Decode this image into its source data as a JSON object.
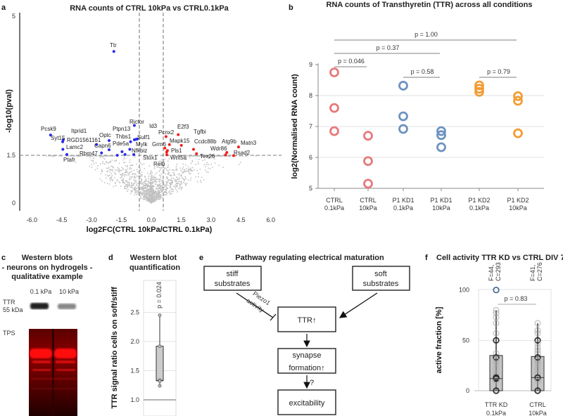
{
  "chart_data": [
    {
      "panel": "a",
      "type": "scatter",
      "title": "RNA counts of CTRL 10kPa vs CTRL0.1kPa",
      "xlabel": "log2FC(CTRL 10kPa/CTRL 0.1kPa)",
      "ylabel": "-log10(pval)",
      "xlim": [
        -6.5,
        6.5
      ],
      "ylim": [
        0,
        5
      ],
      "xticks": [
        "-6.0",
        "-4.5",
        "-3.0",
        "-1.5",
        "0.0",
        "1.5",
        "3.0",
        "4.5",
        "6.0"
      ],
      "yticks": [
        "0",
        "1.5",
        "5"
      ],
      "thresholds": {
        "log2fc": 0.6,
        "pval": 1.5
      },
      "colors": {
        "down": "#2b2bf0",
        "up": "#f02020",
        "ns": "#c0c0c0"
      },
      "down_genes": [
        {
          "gene": "Ttr",
          "x": -1.88,
          "y": 4.11
        },
        {
          "gene": "Pcsk9",
          "x": -5.06,
          "y": 2.01
        },
        {
          "gene": "Syt15",
          "x": -4.42,
          "y": 1.89
        },
        {
          "gene": "Itprid1",
          "x": -4.45,
          "y": 1.84
        },
        {
          "gene": "RGD1561161",
          "x": -2.75,
          "y": 1.77
        },
        {
          "gene": "Lamc2",
          "x": -4.44,
          "y": 1.65
        },
        {
          "gene": "Ptafr",
          "x": -4.24,
          "y": 1.52
        },
        {
          "gene": "Optc",
          "x": -2.12,
          "y": 1.87
        },
        {
          "gene": "Capn6",
          "x": -2.12,
          "y": 1.64
        },
        {
          "gene": "Rbm47",
          "x": -2.5,
          "y": 1.56
        },
        {
          "gene": "Pde5a",
          "x": -1.47,
          "y": 1.59
        },
        {
          "gene": "Nfkbiz",
          "x": -1.32,
          "y": 1.52
        },
        {
          "gene": "Mylk",
          "x": -1.08,
          "y": 1.65
        },
        {
          "gene": "Thbs1",
          "x": -1.04,
          "y": 1.84
        },
        {
          "gene": "Rictor",
          "x": -0.85,
          "y": 2.25
        },
        {
          "gene": "Ptpn13",
          "x": -0.85,
          "y": 1.89
        },
        {
          "gene": "Id3",
          "x": -0.78,
          "y": 1.9
        },
        {
          "gene": "Sulf1",
          "x": -0.7,
          "y": 1.91
        },
        {
          "gene": "Stox1",
          "x": -0.88,
          "y": 1.52
        },
        {
          "gene": "",
          "x": -1.71,
          "y": 1.5
        }
      ],
      "up_genes": [
        {
          "gene": "Pcnx2",
          "x": 0.74,
          "y": 1.97
        },
        {
          "gene": "E2f3",
          "x": 1.35,
          "y": 2.02
        },
        {
          "gene": "Tgfbi",
          "x": 1.51,
          "y": 1.75
        },
        {
          "gene": "Mapk15",
          "x": 0.91,
          "y": 1.77
        },
        {
          "gene": "Grm6",
          "x": 0.68,
          "y": 1.68
        },
        {
          "gene": "Pls1",
          "x": 0.81,
          "y": 1.62
        },
        {
          "gene": "Relb",
          "x": 0.77,
          "y": 1.58
        },
        {
          "gene": "Wnt5a",
          "x": 0.78,
          "y": 1.51
        },
        {
          "gene": "Ccdc88b",
          "x": 2.12,
          "y": 1.65
        },
        {
          "gene": "Tex26",
          "x": 2.27,
          "y": 1.54
        },
        {
          "gene": "Atg9b",
          "x": 3.79,
          "y": 1.57
        },
        {
          "gene": "Wdr86",
          "x": 3.73,
          "y": 1.51
        },
        {
          "gene": "Matn3",
          "x": 4.38,
          "y": 1.71
        },
        {
          "gene": "Rsad2",
          "x": 4.13,
          "y": 1.49
        }
      ]
    },
    {
      "panel": "b",
      "type": "scatter",
      "title": "RNA counts of Transthyretin (TTR) across all conditions",
      "ylabel": "log2(Normalised RNA count)",
      "ylim": [
        5,
        9
      ],
      "yticks": [
        "5",
        "6",
        "7",
        "8",
        "9"
      ],
      "grid": true,
      "categories": [
        [
          "CTRL",
          "0.1kPa"
        ],
        [
          "CTRL",
          "10kPa"
        ],
        [
          "P1 KD1",
          "0.1kPa"
        ],
        [
          "P1 KD1",
          "10kPa"
        ],
        [
          "P1 KD2",
          "0.1kPa"
        ],
        [
          "P1 KD2",
          "10kPa"
        ]
      ],
      "colors": [
        "#e8787a",
        "#e8787a",
        "#6e93bf",
        "#6e93bf",
        "#f39c34",
        "#f39c34"
      ],
      "values": [
        [
          8.75,
          7.6,
          6.85
        ],
        [
          6.7,
          5.88,
          5.15
        ],
        [
          8.32,
          7.33,
          6.92
        ],
        [
          6.85,
          6.72,
          6.33
        ],
        [
          8.33,
          8.22,
          8.12
        ],
        [
          7.98,
          7.83,
          6.78
        ]
      ],
      "comparisons": [
        {
          "from": 0,
          "to": 1,
          "label": "p = 0.046"
        },
        {
          "from": 0,
          "to": 3,
          "label": "p = 0.37"
        },
        {
          "from": 0,
          "to": 5,
          "label": "p = 1.00"
        },
        {
          "from": 2,
          "to": 3,
          "label": "p = 0.58"
        },
        {
          "from": 4,
          "to": 5,
          "label": "p = 0.79"
        }
      ]
    },
    {
      "panel": "d",
      "type": "box",
      "title": [
        "Western blot",
        "quantification"
      ],
      "ylabel": "TTR signal ratio cells on soft/stiff",
      "ylim": [
        0.75,
        2.95
      ],
      "yticks": [
        "1.0",
        "1.5",
        "2.0",
        "2.5"
      ],
      "points": [
        2.45,
        1.92,
        1.34,
        1.32,
        1.24
      ],
      "box": {
        "q1": 1.33,
        "median": 1.33,
        "q3": 1.92,
        "whisker_low": 1.24,
        "whisker_high": 2.45
      },
      "annotation": "p = 0.024"
    },
    {
      "panel": "f",
      "type": "box",
      "title": "Cell activity TTR KD vs CTRL DIV 7",
      "ylabel": "active fraction [%]",
      "ylim": [
        0,
        100
      ],
      "yticks": [
        "0",
        "50",
        "100"
      ],
      "groups": [
        {
          "label": [
            "TTR KD",
            "0.1kPa"
          ],
          "counts": [
            "F=44,",
            "C=293"
          ],
          "q1": 0,
          "median": 12,
          "q3": 35,
          "whisker_high": 80,
          "points": [
            100,
            80,
            77,
            73,
            67,
            57,
            50,
            37,
            33,
            30,
            27,
            22,
            17,
            15,
            13,
            12,
            10,
            0
          ],
          "outlier_color": "#3a5f8a"
        },
        {
          "label": [
            "CTRL",
            "10kPa"
          ],
          "counts": [
            "F=41,",
            "C=276"
          ],
          "q1": 0,
          "median": 13,
          "q3": 34,
          "whisker_high": 67,
          "points": [
            67,
            60,
            57,
            50,
            47,
            43,
            40,
            37,
            33,
            30,
            27,
            22,
            17,
            13,
            10,
            0
          ]
        }
      ],
      "comparison": "p = 0.83"
    }
  ],
  "panels": {
    "a": "a",
    "b": "b",
    "c": "c",
    "d": "d",
    "e": "e",
    "f": "f"
  },
  "western": {
    "title": [
      "Western blots",
      "- neurons on hydrogels -",
      "qualitative example"
    ],
    "lanes": [
      "0.1 kPa",
      "10 kPa"
    ],
    "ttr_label": [
      "TTR",
      "55 kDa"
    ],
    "tps_label": "TPS"
  },
  "pathway": {
    "title": "Pathway regulating electrical maturation",
    "stiff": [
      "stiff",
      "substrates"
    ],
    "soft": [
      "soft",
      "substrates"
    ],
    "piezo": [
      "Piezo1",
      "activity"
    ],
    "ttr": "TTR↑",
    "synapse": [
      "synapse",
      "formation↑"
    ],
    "question": "?",
    "excitability": "excitability"
  }
}
